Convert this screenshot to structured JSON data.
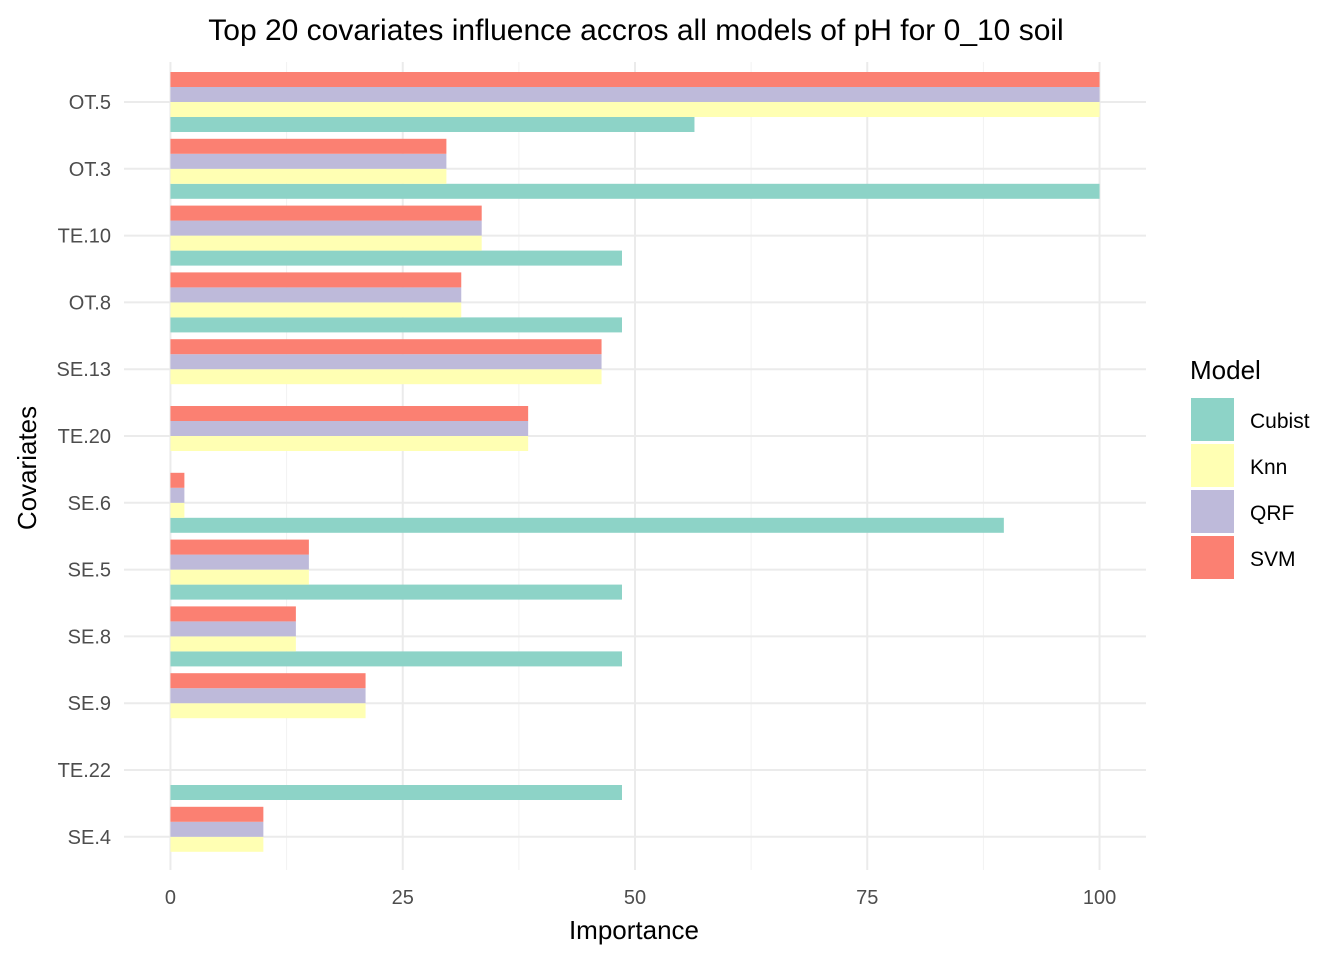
{
  "chart_data": {
    "type": "bar",
    "orientation": "horizontal",
    "title": "Top 20 covariates influence accros all models of pH for 0_10 soil",
    "xlabel": "Importance",
    "ylabel": "Covariates",
    "xlim": [
      -5,
      105
    ],
    "xticks": [
      0,
      25,
      50,
      75,
      100
    ],
    "grid": true,
    "legend": {
      "title": "Model",
      "position": "right"
    },
    "categories": [
      "OT.5",
      "OT.3",
      "TE.10",
      "OT.8",
      "SE.13",
      "TE.20",
      "SE.6",
      "SE.5",
      "SE.8",
      "SE.9",
      "TE.22",
      "SE.4"
    ],
    "series": [
      {
        "name": "Cubist",
        "color": "#8DD3C7",
        "values": [
          56.4,
          100,
          48.6,
          48.6,
          null,
          null,
          89.7,
          48.6,
          48.6,
          null,
          48.6,
          null
        ]
      },
      {
        "name": "Knn",
        "color": "#FFFFB3",
        "values": [
          100,
          29.7,
          33.5,
          31.3,
          46.4,
          38.5,
          1.5,
          14.9,
          13.5,
          21.0,
          null,
          10.0
        ]
      },
      {
        "name": "QRF",
        "color": "#BEBADA",
        "values": [
          100,
          29.7,
          33.5,
          31.3,
          46.4,
          38.5,
          1.5,
          14.9,
          13.5,
          21.0,
          null,
          10.0
        ]
      },
      {
        "name": "SVM",
        "color": "#FB8072",
        "values": [
          100,
          29.7,
          33.5,
          31.3,
          46.4,
          38.5,
          1.5,
          14.9,
          13.5,
          21.0,
          null,
          10.0
        ]
      }
    ]
  }
}
